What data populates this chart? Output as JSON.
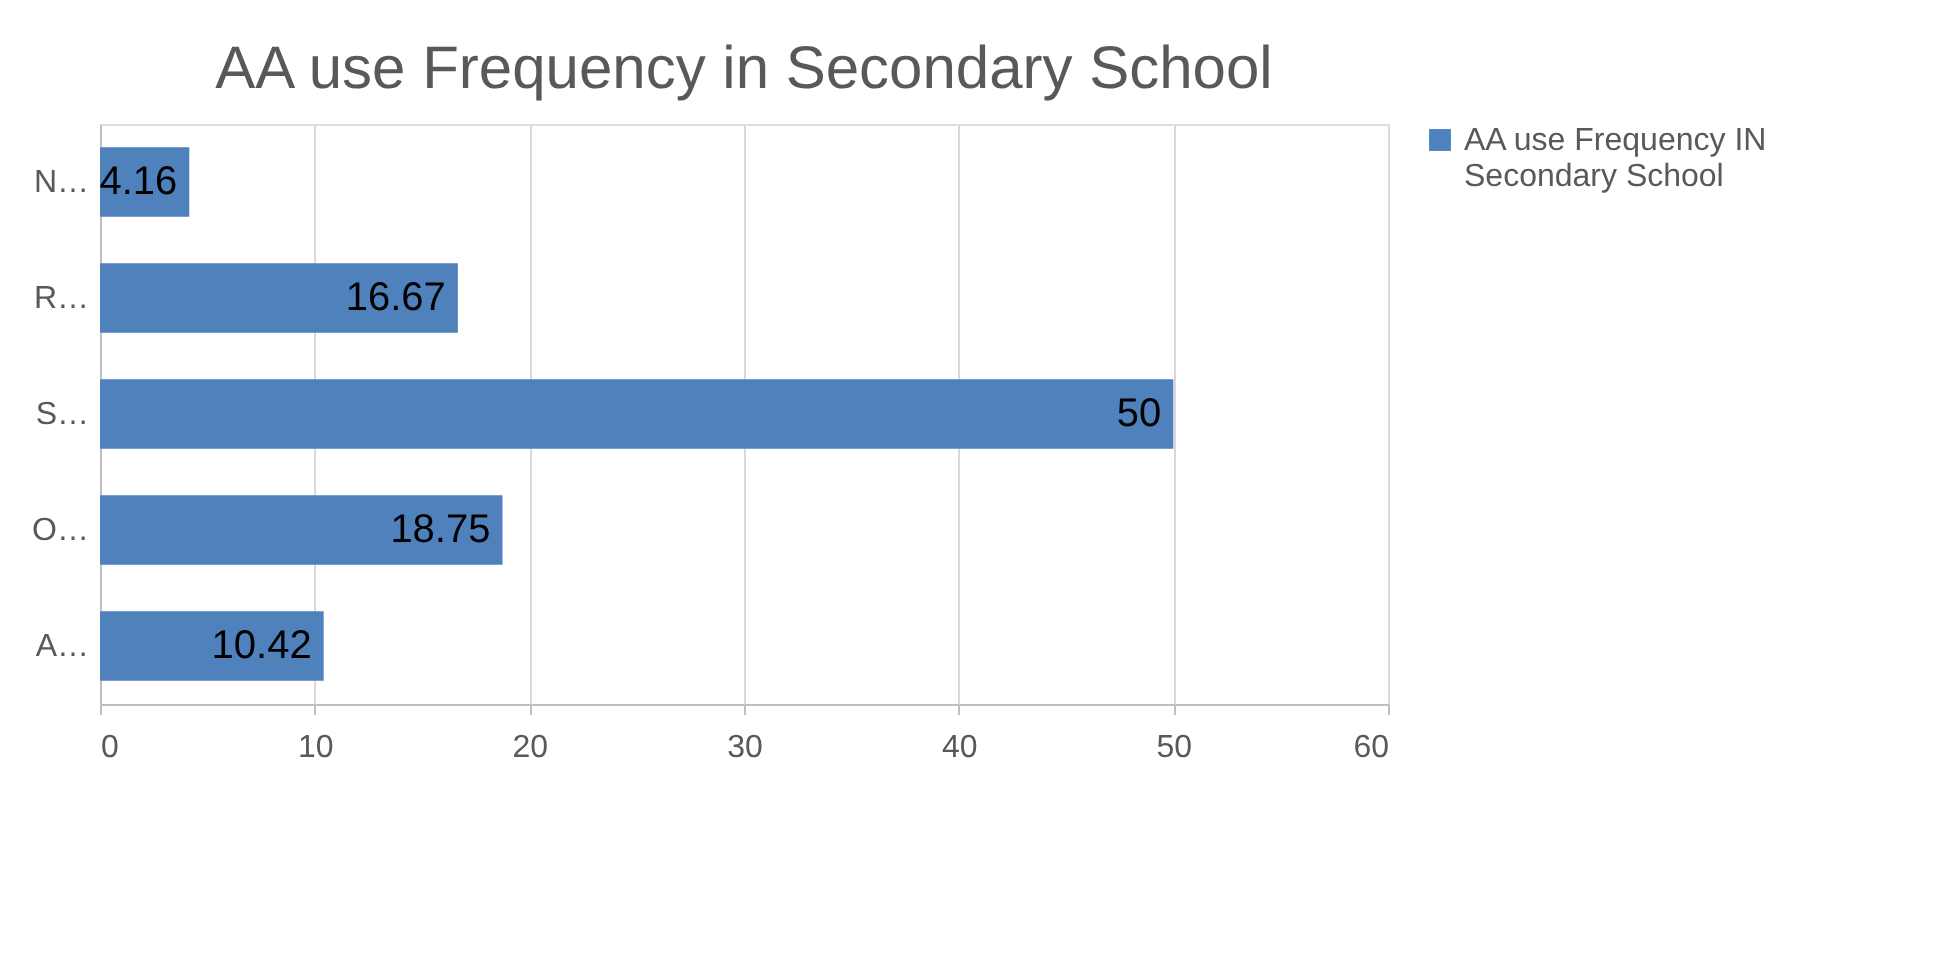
{
  "chart_data": {
    "type": "bar",
    "orientation": "horizontal",
    "title": "AA use Frequency in Secondary School",
    "categories": [
      "N…",
      "R…",
      "S…",
      "O…",
      "A…"
    ],
    "series": [
      {
        "name": "AA use Frequency IN Secondary School",
        "color": "#4f81bd",
        "values": [
          4.16,
          16.67,
          50,
          18.75,
          10.42
        ]
      }
    ],
    "xlim": [
      0,
      60
    ],
    "xticks": [
      0,
      10,
      20,
      30,
      40,
      50,
      60
    ],
    "grid": "x",
    "legend": "right",
    "data_labels": true
  }
}
